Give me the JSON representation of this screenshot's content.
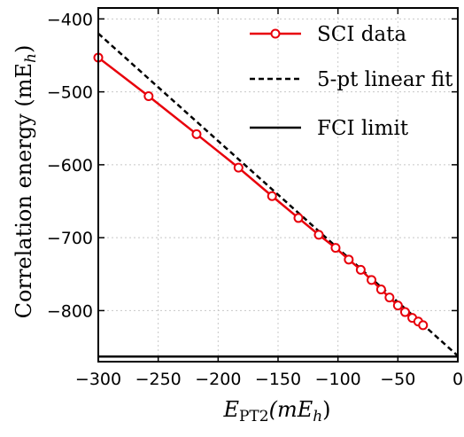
{
  "chart_data": {
    "type": "line",
    "xlabel_main": "E",
    "xlabel_sub": "PT2",
    "xlabel_units": "(mE",
    "xlabel_units_sub": "h",
    "xlabel_close": ")",
    "ylabel_main": "Correlation energy (mE",
    "ylabel_sub": "h",
    "ylabel_close": ")",
    "xlim": [
      -300,
      0
    ],
    "ylim": [
      -870,
      -385
    ],
    "xticks": [
      -300,
      -250,
      -200,
      -150,
      -100,
      -50,
      0
    ],
    "xtick_labels": [
      "−300",
      "−250",
      "−200",
      "−150",
      "−100",
      "−50",
      "0"
    ],
    "yticks": [
      -800,
      -700,
      -600,
      -500,
      -400
    ],
    "ytick_labels": [
      "−800",
      "−700",
      "−600",
      "−500",
      "−400"
    ],
    "grid": true,
    "legend_position": "top-right",
    "series": [
      {
        "name": "SCI data",
        "style": "solid-with-open-circles",
        "color": "#e8000b",
        "x": [
          -300,
          -258,
          -218,
          -183,
          -155,
          -133,
          -116,
          -102,
          -91,
          -81,
          -72,
          -64,
          -57,
          -50,
          -44,
          -38,
          -33,
          -29
        ],
        "y": [
          -453,
          -506,
          -558,
          -604,
          -643,
          -673,
          -696,
          -714,
          -730,
          -744,
          -758,
          -771,
          -782,
          -793,
          -802,
          -810,
          -815,
          -820
        ]
      },
      {
        "name": "5-pt linear fit",
        "style": "dashed",
        "color": "#000000",
        "x": [
          -300,
          0
        ],
        "y": [
          -420,
          -862
        ]
      },
      {
        "name": "FCI limit",
        "style": "solid",
        "color": "#000000",
        "x": [
          -300,
          0
        ],
        "y": [
          -863,
          -863
        ]
      }
    ]
  }
}
